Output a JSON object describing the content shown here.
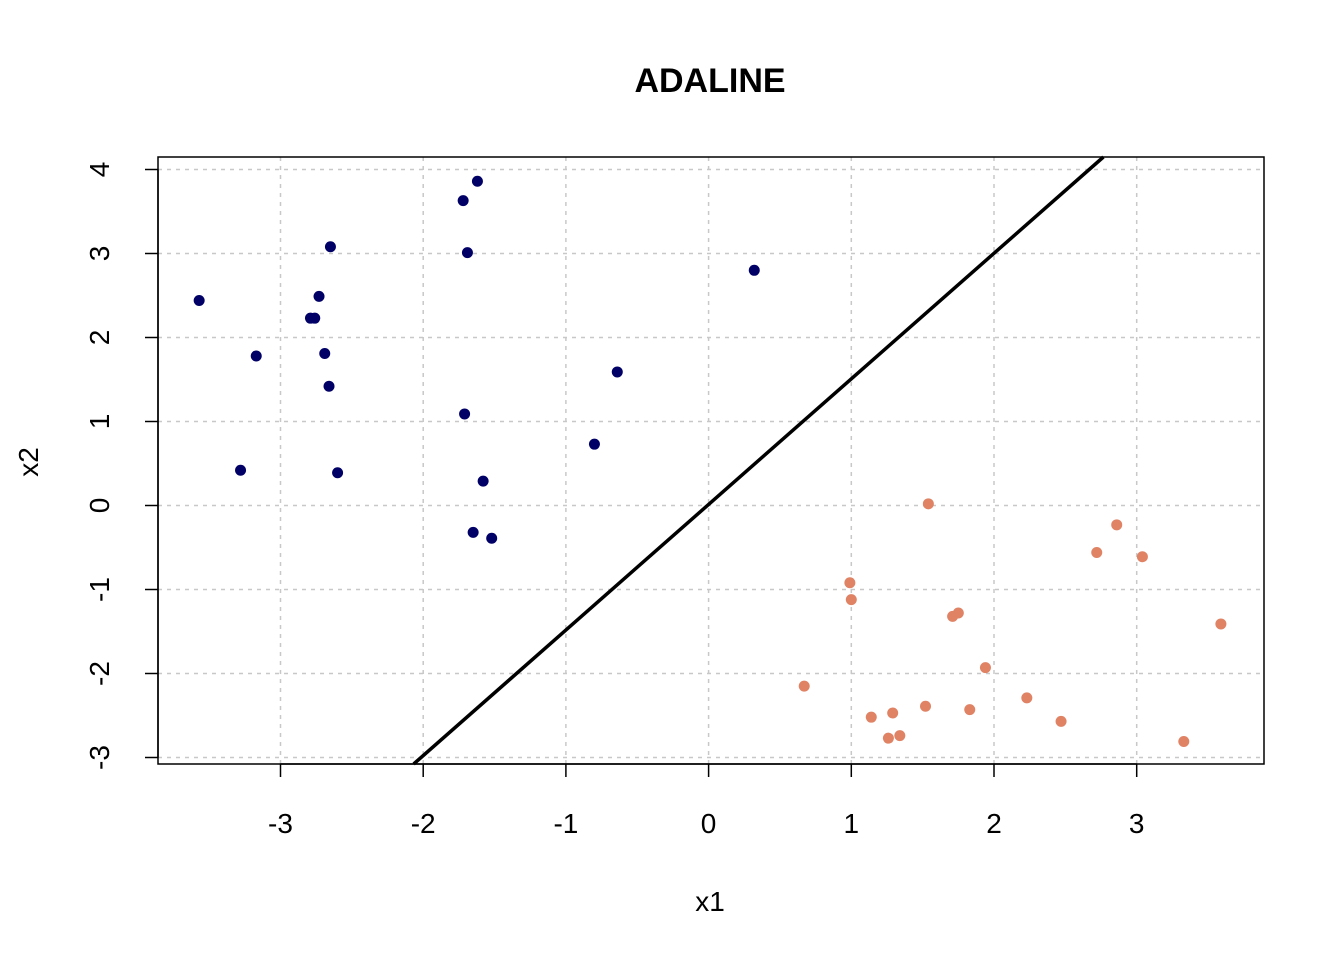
{
  "chart_data": {
    "type": "scatter",
    "title": "ADALINE",
    "xlabel": "x1",
    "ylabel": "x2",
    "xlim": [
      -3.85,
      3.9
    ],
    "ylim": [
      -3.1,
      4.15
    ],
    "x_ticks": [
      -3,
      -2,
      -1,
      0,
      1,
      2,
      3
    ],
    "y_ticks": [
      -3,
      -2,
      -1,
      0,
      1,
      2,
      3,
      4
    ],
    "x_tick_labels": [
      "-3",
      "-2",
      "-1",
      "0",
      "1",
      "2",
      "3"
    ],
    "y_tick_labels": [
      "-3",
      "-2",
      "-1",
      "0",
      "1",
      "2",
      "3",
      "4"
    ],
    "grid": true,
    "series": [
      {
        "color": "#000066",
        "points": [
          [
            -3.57,
            2.44
          ],
          [
            -3.17,
            1.78
          ],
          [
            -3.28,
            0.42
          ],
          [
            -2.65,
            3.08
          ],
          [
            -2.73,
            2.49
          ],
          [
            -2.79,
            2.23
          ],
          [
            -2.76,
            2.23
          ],
          [
            -2.69,
            1.81
          ],
          [
            -2.66,
            1.42
          ],
          [
            -2.6,
            0.39
          ],
          [
            -1.72,
            3.63
          ],
          [
            -1.62,
            3.86
          ],
          [
            -1.69,
            3.01
          ],
          [
            -1.71,
            1.09
          ],
          [
            -1.58,
            0.29
          ],
          [
            -1.65,
            -0.32
          ],
          [
            -1.52,
            -0.39
          ],
          [
            -0.8,
            0.73
          ],
          [
            -0.64,
            1.59
          ],
          [
            0.32,
            2.8
          ]
        ]
      },
      {
        "color": "#E08264",
        "points": [
          [
            1.54,
            0.02
          ],
          [
            0.99,
            -0.92
          ],
          [
            1.0,
            -1.12
          ],
          [
            0.67,
            -2.15
          ],
          [
            1.14,
            -2.52
          ],
          [
            1.29,
            -2.47
          ],
          [
            1.26,
            -2.77
          ],
          [
            1.34,
            -2.74
          ],
          [
            1.52,
            -2.39
          ],
          [
            1.71,
            -1.32
          ],
          [
            1.75,
            -1.28
          ],
          [
            1.94,
            -1.93
          ],
          [
            1.83,
            -2.43
          ],
          [
            2.23,
            -2.29
          ],
          [
            2.47,
            -2.57
          ],
          [
            2.72,
            -0.56
          ],
          [
            2.86,
            -0.23
          ],
          [
            3.04,
            -0.61
          ],
          [
            3.59,
            -1.41
          ],
          [
            3.33,
            -2.81
          ]
        ]
      }
    ],
    "decision_boundary": {
      "slope": 1.5,
      "intercept": 0.0,
      "color": "#000000"
    }
  }
}
